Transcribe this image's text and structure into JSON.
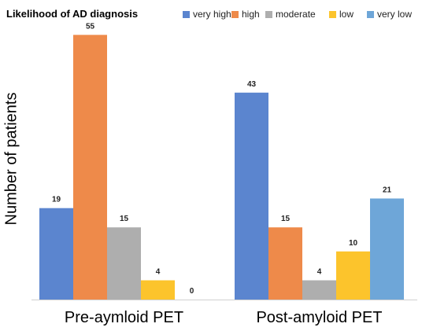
{
  "chart_data": {
    "type": "bar",
    "legend_title": "Likelihood of AD diagnosis",
    "legend_position": "top",
    "ylabel": "Number of patients",
    "xlabel": "",
    "ylim": [
      0,
      58
    ],
    "grid": false,
    "categories": [
      "Pre-aymloid PET",
      "Post-amyloid PET"
    ],
    "series": [
      {
        "name": "very high",
        "color": "#5b85cf",
        "values": [
          19,
          43
        ]
      },
      {
        "name": "high",
        "color": "#ee8a4a",
        "values": [
          55,
          15
        ]
      },
      {
        "name": "moderate",
        "color": "#aeaeae",
        "values": [
          15,
          4
        ]
      },
      {
        "name": "low",
        "color": "#fcc42c",
        "values": [
          4,
          10
        ]
      },
      {
        "name": "very low",
        "color": "#6ea6d8",
        "values": [
          0,
          21
        ]
      }
    ]
  }
}
